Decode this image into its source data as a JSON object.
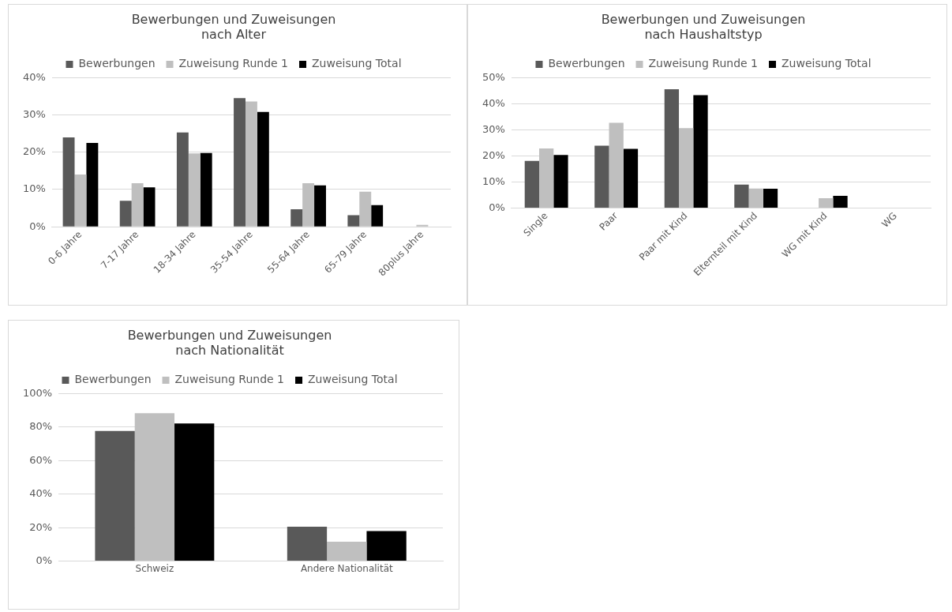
{
  "chart_data": [
    {
      "type": "bar",
      "title": "Bewerbungen und Zuweisungen\nnach Alter",
      "categories": [
        "0-6 Jahre",
        "7-17 Jahre",
        "18-34 Jahre",
        "35-54 Jahre",
        "55-64 Jahre",
        "65-79 Jahre",
        "80plus Jahre"
      ],
      "series": [
        {
          "name": "Bewerbungen",
          "color": "#595959",
          "values": [
            24,
            7,
            25.3,
            34.5,
            4.7,
            3.1,
            0
          ]
        },
        {
          "name": "Zuweisung Runde 1",
          "color": "#bfbfbf",
          "values": [
            14,
            11.7,
            19.7,
            33.6,
            11.7,
            9.4,
            0.5
          ]
        },
        {
          "name": "Zuweisung Total",
          "color": "#000000",
          "values": [
            22.5,
            10.6,
            19.8,
            30.8,
            11.1,
            5.8,
            0
          ]
        }
      ],
      "ylim": [
        0,
        40
      ],
      "yticks": [
        {
          "value": 0,
          "label": "0%"
        },
        {
          "value": 10,
          "label": "10%"
        },
        {
          "value": 20,
          "label": "20%"
        },
        {
          "value": 30,
          "label": "30%"
        },
        {
          "value": 40,
          "label": "40%"
        }
      ],
      "grid": "y",
      "legend": "top"
    },
    {
      "type": "bar",
      "title": "Bewerbungen und Zuweisungen\nnach Haushaltstyp",
      "categories": [
        "Single",
        "Paar",
        "Paar mit Kind",
        "Elternteil mit Kind",
        "WG mit Kind",
        "WG"
      ],
      "series": [
        {
          "name": "Bewerbungen",
          "color": "#595959",
          "values": [
            18.1,
            23.9,
            45.6,
            9,
            0,
            0
          ]
        },
        {
          "name": "Zuweisung Runde 1",
          "color": "#bfbfbf",
          "values": [
            22.9,
            32.7,
            30.7,
            7.5,
            3.8,
            0
          ]
        },
        {
          "name": "Zuweisung Total",
          "color": "#000000",
          "values": [
            20.4,
            22.7,
            43.3,
            7.4,
            4.7,
            0
          ]
        }
      ],
      "ylim": [
        0,
        50
      ],
      "yticks": [
        {
          "value": 0,
          "label": "0%"
        },
        {
          "value": 10,
          "label": "10%"
        },
        {
          "value": 20,
          "label": "20%"
        },
        {
          "value": 30,
          "label": "30%"
        },
        {
          "value": 40,
          "label": "40%"
        },
        {
          "value": 50,
          "label": "50%"
        }
      ],
      "grid": "y",
      "legend": "top"
    },
    {
      "type": "bar",
      "title": "Bewerbungen und Zuweisungen\nnach Nationalität",
      "categories": [
        "Schweiz",
        "Andere Nationalität"
      ],
      "series": [
        {
          "name": "Bewerbungen",
          "color": "#595959",
          "values": [
            77.7,
            20.5
          ]
        },
        {
          "name": "Zuweisung Runde 1",
          "color": "#bfbfbf",
          "values": [
            88.3,
            11.6
          ]
        },
        {
          "name": "Zuweisung Total",
          "color": "#000000",
          "values": [
            82.2,
            17.9
          ]
        }
      ],
      "ylim": [
        0,
        100
      ],
      "yticks": [
        {
          "value": 0,
          "label": "0%"
        },
        {
          "value": 20,
          "label": "20%"
        },
        {
          "value": 40,
          "label": "40%"
        },
        {
          "value": 60,
          "label": "60%"
        },
        {
          "value": 80,
          "label": "80%"
        },
        {
          "value": 100,
          "label": "100%"
        }
      ],
      "grid": "y",
      "legend": "top"
    }
  ]
}
